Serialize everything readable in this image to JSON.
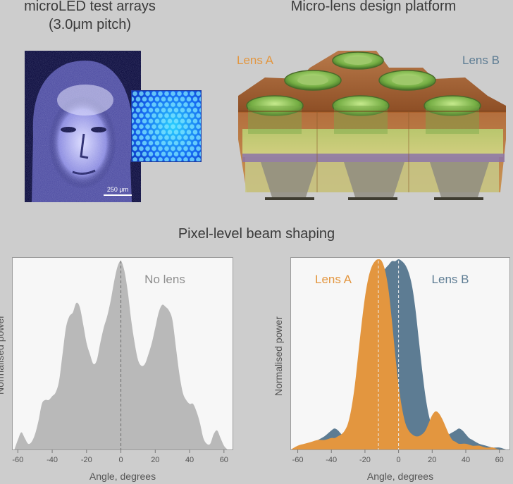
{
  "titles": {
    "arrays_line1": "microLED test arrays",
    "arrays_line2": "(3.0μm pitch)",
    "platform": "Micro-lens design platform",
    "beam": "Pixel-level beam shaping"
  },
  "micrograph": {
    "scale_bar": "250 μm"
  },
  "lens_design": {
    "label_a": "Lens A",
    "label_b": "Lens B"
  },
  "colors": {
    "lens_a": "#e3963f",
    "lens_b": "#5d7c93",
    "no_lens": "#b9b9b9"
  },
  "chart_data": [
    {
      "type": "area",
      "annotation": "No lens",
      "xlabel": "Angle, degrees",
      "ylabel": "Normalised power",
      "xlim": [
        -63,
        65
      ],
      "ylim": [
        0,
        1.0
      ],
      "xticks": [
        -60,
        -40,
        -20,
        0,
        20,
        40,
        60
      ],
      "reference_line_x": 0,
      "series": [
        {
          "x": [
            -62,
            -60,
            -58,
            -56,
            -54,
            -52,
            -50,
            -48,
            -46,
            -44,
            -42,
            -40,
            -38,
            -36,
            -34,
            -32,
            -30,
            -28,
            -26,
            -24,
            -22,
            -20,
            -18,
            -16,
            -14,
            -12,
            -10,
            -8,
            -6,
            -4,
            -2,
            0,
            2,
            4,
            6,
            8,
            10,
            12,
            14,
            16,
            18,
            20,
            22,
            24,
            26,
            28,
            30,
            32,
            34,
            36,
            38,
            40,
            42,
            44,
            46,
            48,
            50,
            52,
            54,
            56,
            58,
            60,
            62
          ],
          "y": [
            0.0,
            0.05,
            0.09,
            0.06,
            0.03,
            0.04,
            0.08,
            0.15,
            0.24,
            0.26,
            0.26,
            0.28,
            0.3,
            0.36,
            0.5,
            0.64,
            0.7,
            0.72,
            0.77,
            0.75,
            0.66,
            0.56,
            0.5,
            0.45,
            0.47,
            0.56,
            0.64,
            0.7,
            0.78,
            0.88,
            0.96,
            0.99,
            0.94,
            0.83,
            0.68,
            0.56,
            0.47,
            0.44,
            0.45,
            0.5,
            0.56,
            0.64,
            0.72,
            0.76,
            0.75,
            0.73,
            0.68,
            0.54,
            0.4,
            0.3,
            0.26,
            0.24,
            0.24,
            0.2,
            0.14,
            0.06,
            0.03,
            0.03,
            0.08,
            0.1,
            0.06,
            0.02,
            0.0
          ]
        }
      ]
    },
    {
      "type": "area",
      "xlabel": "Angle, degrees",
      "ylabel": "Normalised power",
      "xlim": [
        -64,
        66
      ],
      "ylim": [
        0,
        1.0
      ],
      "xticks": [
        -60,
        -40,
        -20,
        0,
        20,
        40,
        60
      ],
      "reference_lines_x": [
        -12,
        0
      ],
      "series": [
        {
          "name": "Lens B",
          "x": [
            -64,
            -60,
            -56,
            -52,
            -48,
            -44,
            -40,
            -38,
            -36,
            -34,
            -32,
            -30,
            -28,
            -26,
            -24,
            -22,
            -20,
            -18,
            -16,
            -14,
            -12,
            -10,
            -8,
            -6,
            -4,
            -2,
            0,
            2,
            4,
            6,
            8,
            10,
            12,
            14,
            16,
            18,
            20,
            22,
            24,
            26,
            28,
            30,
            32,
            34,
            36,
            38,
            40,
            42,
            44,
            48,
            52,
            56,
            60,
            64,
            66
          ],
          "y": [
            0.0,
            0.01,
            0.02,
            0.03,
            0.05,
            0.07,
            0.1,
            0.11,
            0.1,
            0.08,
            0.07,
            0.07,
            0.1,
            0.16,
            0.25,
            0.36,
            0.48,
            0.6,
            0.72,
            0.82,
            0.88,
            0.92,
            0.95,
            0.97,
            0.99,
            0.99,
            1.0,
            0.99,
            0.97,
            0.93,
            0.86,
            0.74,
            0.58,
            0.42,
            0.28,
            0.18,
            0.12,
            0.09,
            0.07,
            0.06,
            0.07,
            0.08,
            0.09,
            0.1,
            0.11,
            0.1,
            0.08,
            0.06,
            0.05,
            0.03,
            0.02,
            0.01,
            0.01,
            0.0,
            0.0
          ]
        },
        {
          "name": "Lens A",
          "x": [
            -64,
            -60,
            -56,
            -52,
            -48,
            -44,
            -40,
            -38,
            -36,
            -34,
            -32,
            -30,
            -28,
            -26,
            -24,
            -22,
            -20,
            -18,
            -16,
            -14,
            -12,
            -10,
            -8,
            -6,
            -4,
            -2,
            0,
            2,
            4,
            6,
            8,
            10,
            12,
            14,
            16,
            18,
            20,
            22,
            24,
            26,
            28,
            30,
            32,
            34,
            36,
            40,
            44,
            48,
            52,
            56,
            60,
            64,
            66
          ],
          "y": [
            0.0,
            0.02,
            0.03,
            0.04,
            0.05,
            0.05,
            0.06,
            0.06,
            0.07,
            0.08,
            0.1,
            0.14,
            0.22,
            0.34,
            0.5,
            0.66,
            0.8,
            0.9,
            0.96,
            0.99,
            1.0,
            0.99,
            0.94,
            0.84,
            0.68,
            0.5,
            0.34,
            0.22,
            0.14,
            0.1,
            0.08,
            0.07,
            0.07,
            0.08,
            0.1,
            0.14,
            0.18,
            0.2,
            0.19,
            0.16,
            0.12,
            0.08,
            0.05,
            0.04,
            0.03,
            0.03,
            0.02,
            0.02,
            0.01,
            0.01,
            0.0,
            0.0,
            0.0
          ]
        }
      ]
    }
  ]
}
